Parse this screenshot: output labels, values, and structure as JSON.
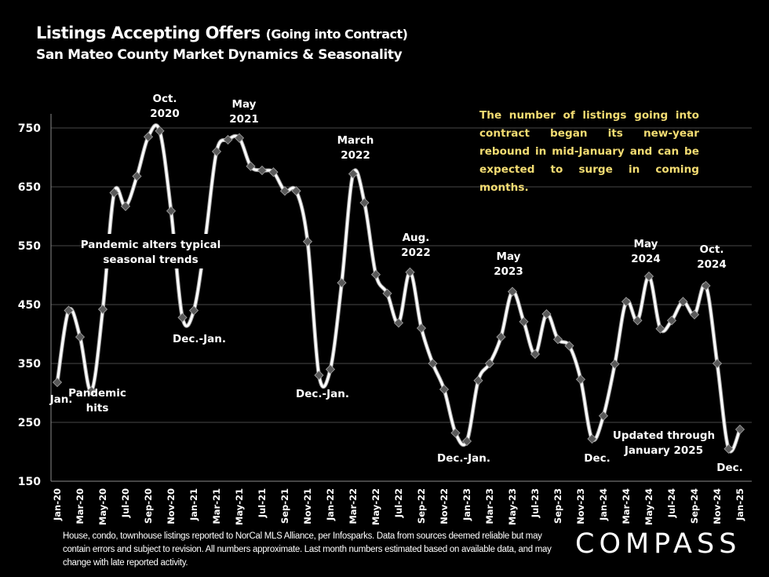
{
  "header": {
    "title_main": "Listings Accepting Offers",
    "title_paren": "(Going into Contract)",
    "subtitle": "San Mateo County Market Dynamics & Seasonality"
  },
  "callout_text": "The number of listings going into contract began its new-year rebound in mid-January and can be expected to surge in coming months.",
  "footnote": "House, condo, townhouse listings reported to NorCal MLS Alliance, per Infosparks. Data from sources deemed reliable but may contain errors and subject to revision. All numbers approximate. Last month numbers estimated based on available data, and may change with late reported activity.",
  "logo": "COMPASS",
  "colors": {
    "background": "#000000",
    "line": "#ffffff",
    "marker": "#595959",
    "callout": "#f3dc72",
    "grid": "#404040"
  },
  "chart_data": {
    "type": "line",
    "title": "Listings Accepting Offers (Going into Contract)",
    "subtitle": "San Mateo County Market Dynamics & Seasonality",
    "xlabel": "",
    "ylabel": "",
    "ylim": [
      150,
      750
    ],
    "yticks": [
      150,
      250,
      350,
      450,
      550,
      650,
      750
    ],
    "grid": true,
    "smooth": true,
    "markers": "diamond",
    "x": [
      "Jan-20",
      "Feb-20",
      "Mar-20",
      "Apr-20",
      "May-20",
      "Jun-20",
      "Jul-20",
      "Aug-20",
      "Sep-20",
      "Oct-20",
      "Nov-20",
      "Dec-20",
      "Jan-21",
      "Feb-21",
      "Mar-21",
      "Apr-21",
      "May-21",
      "Jun-21",
      "Jul-21",
      "Aug-21",
      "Sep-21",
      "Oct-21",
      "Nov-21",
      "Dec-21",
      "Jan-22",
      "Feb-22",
      "Mar-22",
      "Apr-22",
      "May-22",
      "Jun-22",
      "Jul-22",
      "Aug-22",
      "Sep-22",
      "Oct-22",
      "Nov-22",
      "Dec-22",
      "Jan-23",
      "Feb-23",
      "Mar-23",
      "Apr-23",
      "May-23",
      "Jun-23",
      "Jul-23",
      "Aug-23",
      "Sep-23",
      "Oct-23",
      "Nov-23",
      "Dec-23",
      "Jan-24",
      "Feb-24",
      "Mar-24",
      "Apr-24",
      "May-24",
      "Jun-24",
      "Jul-24",
      "Aug-24",
      "Sep-24",
      "Oct-24",
      "Nov-24",
      "Dec-24",
      "Jan-25"
    ],
    "xticks": [
      "Jan-20",
      "Mar-20",
      "May-20",
      "Jul-20",
      "Sep-20",
      "Nov-20",
      "Jan-21",
      "Mar-21",
      "May-21",
      "Jul-21",
      "Sep-21",
      "Nov-21",
      "Jan-22",
      "Mar-22",
      "May-22",
      "Jul-22",
      "Sep-22",
      "Nov-22",
      "Jan-23",
      "Mar-23",
      "May-23",
      "Jul-23",
      "Sep-23",
      "Nov-23",
      "Jan-24",
      "Mar-24",
      "May-24",
      "Jul-24",
      "Sep-24",
      "Nov-24",
      "Jan-25"
    ],
    "series": [
      {
        "name": "Listings Accepting Offers",
        "values": [
          318,
          440,
          395,
          303,
          442,
          640,
          617,
          668,
          735,
          745,
          609,
          428,
          440,
          560,
          710,
          730,
          733,
          685,
          678,
          675,
          643,
          643,
          557,
          330,
          340,
          487,
          672,
          623,
          501,
          469,
          419,
          505,
          410,
          350,
          306,
          232,
          218,
          321,
          350,
          395,
          472,
          421,
          366,
          434,
          391,
          380,
          323,
          222,
          261,
          349,
          455,
          423,
          498,
          409,
          423,
          455,
          433,
          482,
          350,
          205,
          238
        ]
      }
    ],
    "annotations": [
      {
        "text": [
          "Oct.",
          "2020"
        ],
        "x": "Oct-20"
      },
      {
        "text": [
          "May",
          "2021"
        ],
        "x": "May-21"
      },
      {
        "text": [
          "March",
          "2022"
        ],
        "x": "Mar-22"
      },
      {
        "text": [
          "Aug.",
          "2022"
        ],
        "x": "Aug-22"
      },
      {
        "text": [
          "May",
          "2023"
        ],
        "x": "May-23"
      },
      {
        "text": [
          "May",
          "2024"
        ],
        "x": "May-24"
      },
      {
        "text": [
          "Oct.",
          "2024"
        ],
        "x": "Oct-24"
      },
      {
        "text": [
          "Jan."
        ],
        "x": "Jan-20"
      },
      {
        "text": [
          "Pandemic",
          "hits"
        ],
        "x": "Apr-20"
      },
      {
        "text": [
          "Pandemic alters typical",
          "seasonal trends"
        ],
        "x": "Oct-20"
      },
      {
        "text": [
          "Dec.-Jan."
        ],
        "x": "Dec-20"
      },
      {
        "text": [
          "Dec.-Jan."
        ],
        "x": "Dec-21"
      },
      {
        "text": [
          "Dec.-Jan."
        ],
        "x": "Dec-22"
      },
      {
        "text": [
          "Dec."
        ],
        "x": "Dec-23"
      },
      {
        "text": [
          "Updated through",
          "January 2025"
        ],
        "x": "Jul-24"
      },
      {
        "text": [
          "Dec."
        ],
        "x": "Dec-24"
      }
    ]
  }
}
